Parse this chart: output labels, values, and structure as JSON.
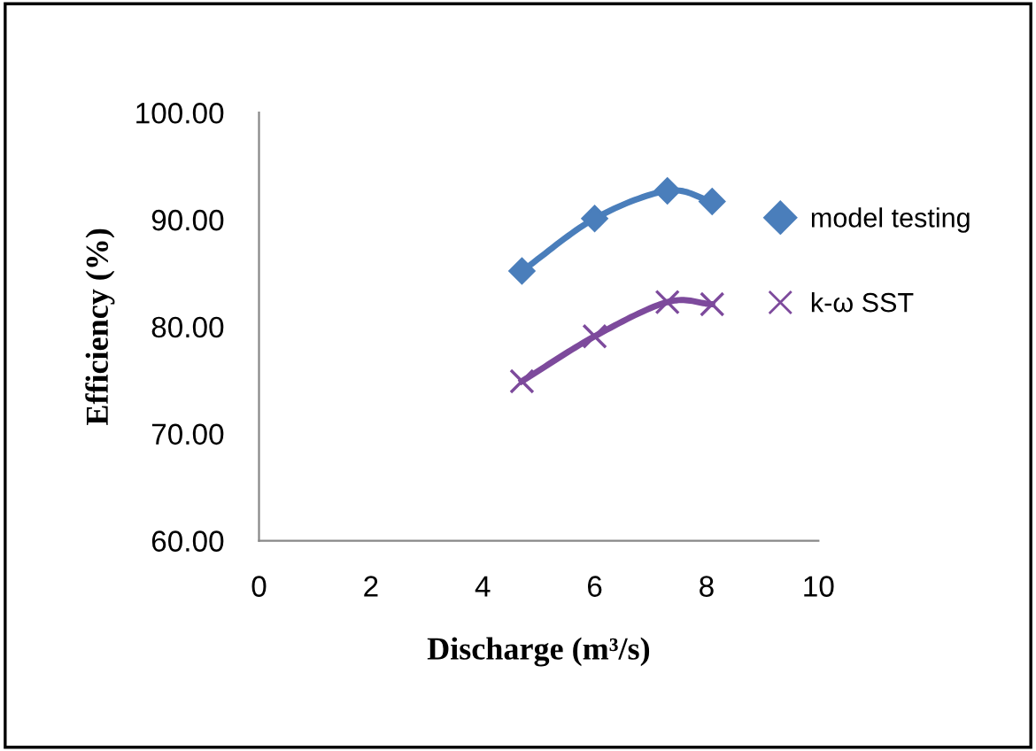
{
  "chart_data": {
    "type": "line",
    "xlabel": "Discharge (m³/s)",
    "ylabel": "Efficiency (%)",
    "xlim": [
      0,
      10
    ],
    "xticks": [
      0,
      2,
      4,
      6,
      8,
      10
    ],
    "ylim": [
      60,
      100
    ],
    "yticks": [
      {
        "value": 60,
        "label": "60.00"
      },
      {
        "value": 70,
        "label": "70.00"
      },
      {
        "value": 80,
        "label": "80.00"
      },
      {
        "value": 90,
        "label": "90.00"
      },
      {
        "value": 100,
        "label": "100.00"
      }
    ],
    "grid": false,
    "legend": "right",
    "series": [
      {
        "name": "model testing",
        "color": "#4a7ebb",
        "marker": "diamond",
        "x": [
          4.7,
          6.0,
          7.3,
          8.1
        ],
        "values": [
          85.2,
          90.1,
          92.7,
          91.7
        ]
      },
      {
        "name": "k-ω SST",
        "color": "#7d4a9c",
        "marker": "cross",
        "x": [
          4.7,
          6.0,
          7.3,
          8.1
        ],
        "values": [
          74.9,
          79.1,
          82.3,
          82.1
        ]
      }
    ]
  }
}
